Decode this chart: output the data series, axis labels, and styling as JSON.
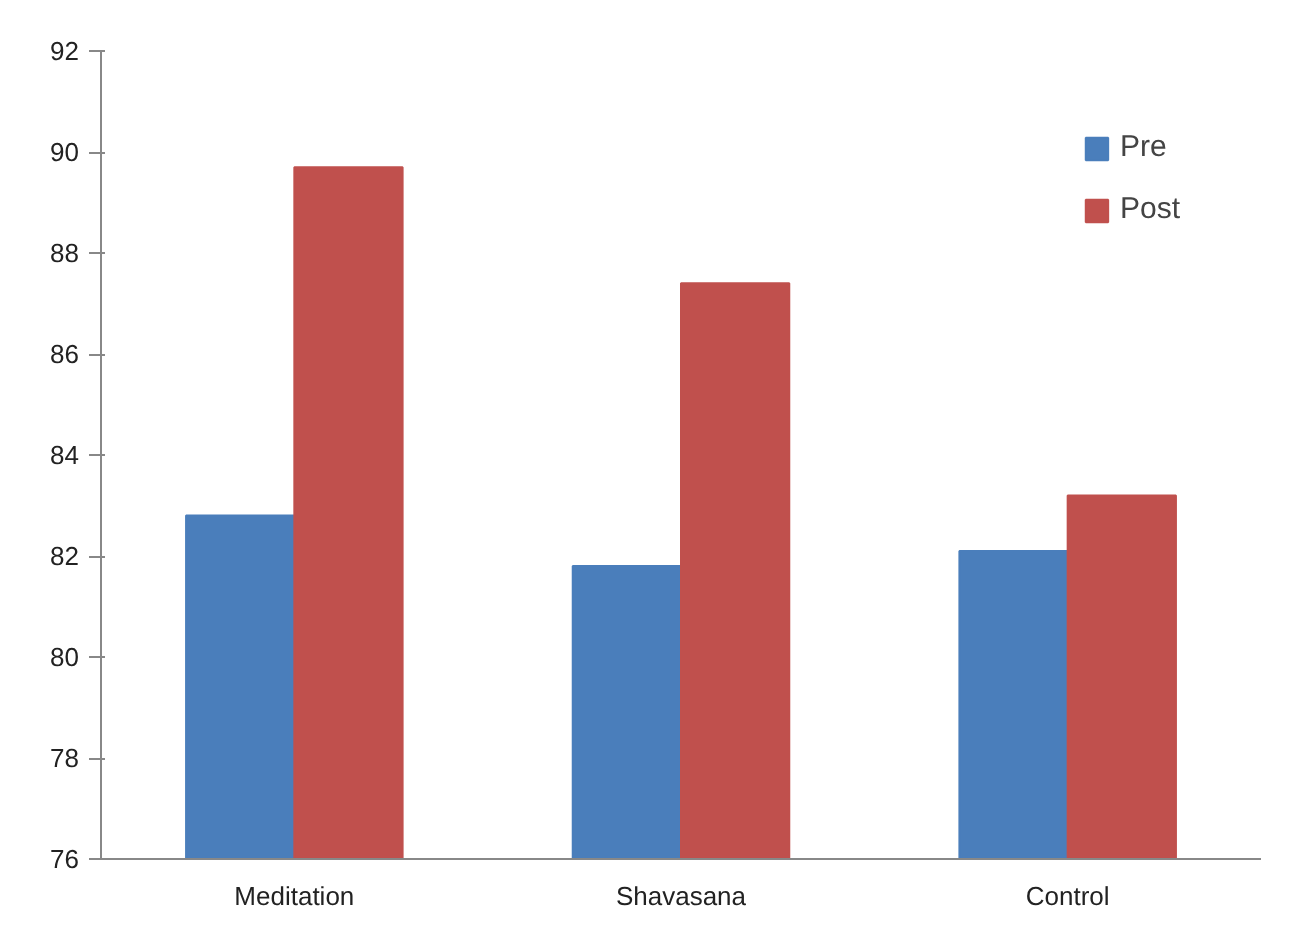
{
  "chart_data": {
    "type": "bar",
    "categories": [
      "Meditation",
      "Shavasana",
      "Control"
    ],
    "series": [
      {
        "name": "Pre",
        "color": "#4a7ebb",
        "values": [
          82.8,
          81.8,
          82.1
        ]
      },
      {
        "name": "Post",
        "color": "#c0504d",
        "values": [
          89.7,
          87.4,
          83.2
        ]
      }
    ],
    "ylim": [
      76,
      92
    ],
    "yticks": [
      76,
      78,
      80,
      82,
      84,
      86,
      88,
      90,
      92
    ],
    "grid": false,
    "legend": "top right"
  }
}
